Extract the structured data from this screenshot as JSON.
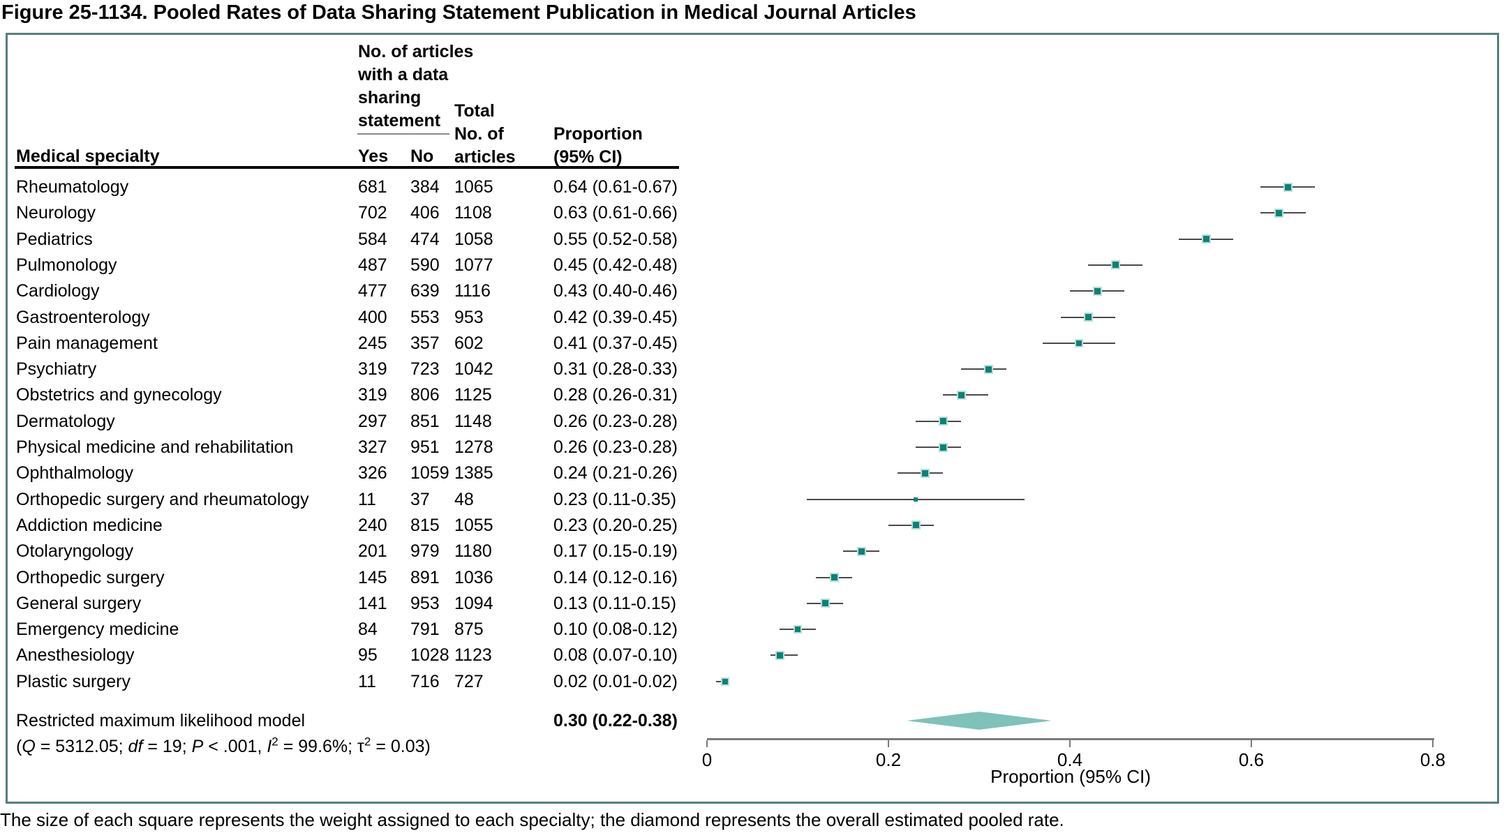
{
  "title": "Figure 25-1134. Pooled Rates of Data Sharing Statement Publication in Medical Journal Articles",
  "caption": "The size of each square represents the weight assigned to each specialty; the diamond represents the overall estimated pooled rate.",
  "table": {
    "col_specialty": "Medical specialty",
    "group_header_lines": [
      "No. of articles",
      "with a data",
      "sharing",
      "statement"
    ],
    "col_yes": "Yes",
    "col_no": "No",
    "total_header_lines": [
      "Total",
      "No. of",
      "articles"
    ],
    "prop_header_lines": [
      "Proportion",
      "(95% CI)"
    ]
  },
  "rows": [
    {
      "specialty": "Rheumatology",
      "yes": "681",
      "no": "384",
      "total": "1065",
      "ci": "0.64 (0.61-0.67)",
      "est": 0.64,
      "lo": 0.61,
      "hi": 0.67,
      "w": 13
    },
    {
      "specialty": "Neurology",
      "yes": "702",
      "no": "406",
      "total": "1108",
      "ci": "0.63 (0.61-0.66)",
      "est": 0.63,
      "lo": 0.61,
      "hi": 0.66,
      "w": 13
    },
    {
      "specialty": "Pediatrics",
      "yes": "584",
      "no": "474",
      "total": "1058",
      "ci": "0.55 (0.52-0.58)",
      "est": 0.55,
      "lo": 0.52,
      "hi": 0.58,
      "w": 13
    },
    {
      "specialty": "Pulmonology",
      "yes": "487",
      "no": "590",
      "total": "1077",
      "ci": "0.45 (0.42-0.48)",
      "est": 0.45,
      "lo": 0.42,
      "hi": 0.48,
      "w": 13
    },
    {
      "specialty": "Cardiology",
      "yes": "477",
      "no": "639",
      "total": "1116",
      "ci": "0.43 (0.40-0.46)",
      "est": 0.43,
      "lo": 0.4,
      "hi": 0.46,
      "w": 13
    },
    {
      "specialty": "Gastroenterology",
      "yes": "400",
      "no": "553",
      "total": "953",
      "ci": "0.42 (0.39-0.45)",
      "est": 0.42,
      "lo": 0.39,
      "hi": 0.45,
      "w": 13
    },
    {
      "specialty": "Pain management",
      "yes": "245",
      "no": "357",
      "total": "602",
      "ci": "0.41 (0.37-0.45)",
      "est": 0.41,
      "lo": 0.37,
      "hi": 0.45,
      "w": 12
    },
    {
      "specialty": "Psychiatry",
      "yes": "319",
      "no": "723",
      "total": "1042",
      "ci": "0.31 (0.28-0.33)",
      "est": 0.31,
      "lo": 0.28,
      "hi": 0.33,
      "w": 13
    },
    {
      "specialty": "Obstetrics and gynecology",
      "yes": "319",
      "no": "806",
      "total": "1125",
      "ci": "0.28 (0.26-0.31)",
      "est": 0.28,
      "lo": 0.26,
      "hi": 0.31,
      "w": 13
    },
    {
      "specialty": "Dermatology",
      "yes": "297",
      "no": "851",
      "total": "1148",
      "ci": "0.26 (0.23-0.28)",
      "est": 0.26,
      "lo": 0.23,
      "hi": 0.28,
      "w": 13
    },
    {
      "specialty": "Physical medicine and rehabilitation",
      "yes": "327",
      "no": "951",
      "total": "1278",
      "ci": "0.26 (0.23-0.28)",
      "est": 0.26,
      "lo": 0.23,
      "hi": 0.28,
      "w": 13
    },
    {
      "specialty": "Ophthalmology",
      "yes": "326",
      "no": "1059",
      "total": "1385",
      "ci": "0.24 (0.21-0.26)",
      "est": 0.24,
      "lo": 0.21,
      "hi": 0.26,
      "w": 13
    },
    {
      "specialty": "Orthopedic surgery and rheumatology",
      "yes": "11",
      "no": "37",
      "total": "48",
      "ci": "0.23 (0.11-0.35)",
      "est": 0.23,
      "lo": 0.11,
      "hi": 0.35,
      "w": 6
    },
    {
      "specialty": "Addiction medicine",
      "yes": "240",
      "no": "815",
      "total": "1055",
      "ci": "0.23 (0.20-0.25)",
      "est": 0.23,
      "lo": 0.2,
      "hi": 0.25,
      "w": 13
    },
    {
      "specialty": "Otolaryngology",
      "yes": "201",
      "no": "979",
      "total": "1180",
      "ci": "0.17 (0.15-0.19)",
      "est": 0.17,
      "lo": 0.15,
      "hi": 0.19,
      "w": 13
    },
    {
      "specialty": "Orthopedic surgery",
      "yes": "145",
      "no": "891",
      "total": "1036",
      "ci": "0.14 (0.12-0.16)",
      "est": 0.14,
      "lo": 0.12,
      "hi": 0.16,
      "w": 13
    },
    {
      "specialty": "General surgery",
      "yes": "141",
      "no": "953",
      "total": "1094",
      "ci": "0.13 (0.11-0.15)",
      "est": 0.13,
      "lo": 0.11,
      "hi": 0.15,
      "w": 13
    },
    {
      "specialty": "Emergency medicine",
      "yes": "84",
      "no": "791",
      "total": "875",
      "ci": "0.10 (0.08-0.12)",
      "est": 0.1,
      "lo": 0.08,
      "hi": 0.12,
      "w": 12
    },
    {
      "specialty": "Anesthesiology",
      "yes": "95",
      "no": "1028",
      "total": "1123",
      "ci": "0.08 (0.07-0.10)",
      "est": 0.08,
      "lo": 0.07,
      "hi": 0.1,
      "w": 13
    },
    {
      "specialty": "Plastic surgery",
      "yes": "11",
      "no": "716",
      "total": "727",
      "ci": "0.02 (0.01-0.02)",
      "est": 0.02,
      "lo": 0.01,
      "hi": 0.02,
      "w": 12
    }
  ],
  "summary": {
    "label": "Restricted maximum likelihood model",
    "proportion": "0.30 (0.22-0.38)",
    "est": 0.3,
    "lo": 0.22,
    "hi": 0.38,
    "stats_parts": [
      {
        "t": "("
      },
      {
        "t": "Q",
        "i": true
      },
      {
        "t": " = 5312.05; "
      },
      {
        "t": "df",
        "i": true
      },
      {
        "t": " = 19; "
      },
      {
        "t": "P",
        "i": true
      },
      {
        "t": " < .001, "
      },
      {
        "t": "I",
        "i": true
      },
      {
        "t": "2",
        "sup": true
      },
      {
        "t": " = 99.6%; τ"
      },
      {
        "t": "2",
        "sup": true
      },
      {
        "t": " = 0.03)"
      }
    ]
  },
  "chart_data": {
    "type": "scatter",
    "subtype": "forest-plot",
    "categories": [
      "Rheumatology",
      "Neurology",
      "Pediatrics",
      "Pulmonology",
      "Cardiology",
      "Gastroenterology",
      "Pain management",
      "Psychiatry",
      "Obstetrics and gynecology",
      "Dermatology",
      "Physical medicine and rehabilitation",
      "Ophthalmology",
      "Orthopedic surgery and rheumatology",
      "Addiction medicine",
      "Otolaryngology",
      "Orthopedic surgery",
      "General surgery",
      "Emergency medicine",
      "Anesthesiology",
      "Plastic surgery"
    ],
    "estimates": [
      0.64,
      0.63,
      0.55,
      0.45,
      0.43,
      0.42,
      0.41,
      0.31,
      0.28,
      0.26,
      0.26,
      0.24,
      0.23,
      0.23,
      0.17,
      0.14,
      0.13,
      0.1,
      0.08,
      0.02
    ],
    "ci_low": [
      0.61,
      0.61,
      0.52,
      0.42,
      0.4,
      0.39,
      0.37,
      0.28,
      0.26,
      0.23,
      0.23,
      0.21,
      0.11,
      0.2,
      0.15,
      0.12,
      0.11,
      0.08,
      0.07,
      0.01
    ],
    "ci_high": [
      0.67,
      0.66,
      0.58,
      0.48,
      0.46,
      0.45,
      0.45,
      0.33,
      0.31,
      0.28,
      0.28,
      0.26,
      0.35,
      0.25,
      0.19,
      0.16,
      0.15,
      0.12,
      0.1,
      0.02
    ],
    "pooled": {
      "label": "Restricted maximum likelihood model",
      "est": 0.3,
      "lo": 0.22,
      "hi": 0.38
    },
    "xlabel": "Proportion (95% CI)",
    "xlim": [
      0,
      0.8
    ],
    "tick_values": [
      0,
      0.2,
      0.4,
      0.6,
      0.8
    ],
    "tick_labels": [
      "0",
      "0.2",
      "0.4",
      "0.6",
      "0.8"
    ],
    "grid": false
  },
  "colors": {
    "square": "#0a8276",
    "square_border": "#b9ded8",
    "diamond": "#7fc2b9",
    "ci_line": "#4a4a4a",
    "axis": "#7a7a7a",
    "panel_border": "#557f7d"
  }
}
